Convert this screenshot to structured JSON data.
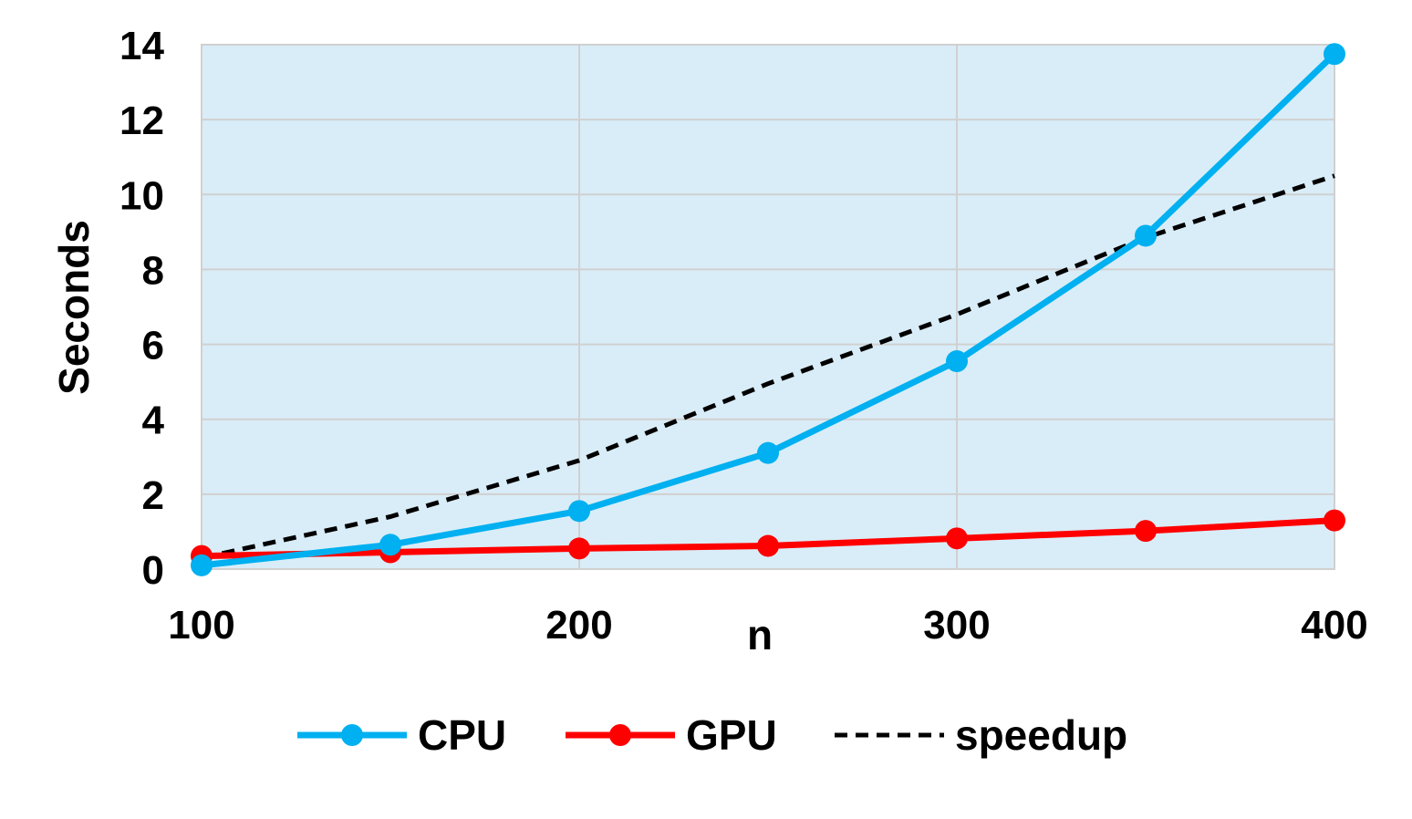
{
  "chart_data": {
    "type": "line",
    "xlabel": "n",
    "ylabel": "Seconds",
    "xlim": [
      100,
      400
    ],
    "ylim": [
      0,
      14
    ],
    "x_ticks": [
      100,
      200,
      300,
      400
    ],
    "y_ticks": [
      0,
      2,
      4,
      6,
      8,
      10,
      12,
      14
    ],
    "grid": true,
    "legend_position": "bottom",
    "plot_background": "#d9edf8",
    "series": [
      {
        "name": "CPU",
        "color": "#00b0f0",
        "style": "solid",
        "markers": true,
        "x": [
          100,
          150,
          200,
          250,
          300,
          350,
          400
        ],
        "y": [
          0.1,
          0.65,
          1.55,
          3.1,
          5.55,
          8.9,
          13.75
        ]
      },
      {
        "name": "GPU",
        "color": "#ff0000",
        "style": "solid",
        "markers": true,
        "x": [
          100,
          150,
          200,
          250,
          300,
          350,
          400
        ],
        "y": [
          0.35,
          0.45,
          0.55,
          0.62,
          0.82,
          1.02,
          1.3
        ]
      },
      {
        "name": "speedup",
        "color": "#000000",
        "style": "dashed",
        "markers": false,
        "x": [
          100,
          150,
          200,
          250,
          300,
          350,
          400
        ],
        "y": [
          0.3,
          1.4,
          2.9,
          4.95,
          6.8,
          8.85,
          10.5
        ]
      }
    ]
  }
}
